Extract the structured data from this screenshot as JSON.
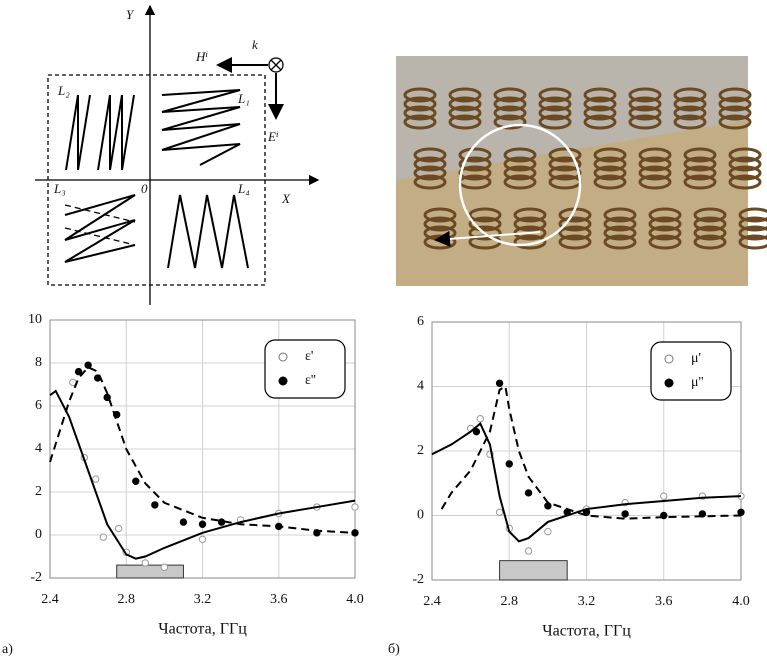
{
  "diagram": {
    "labels": [
      "Y",
      "X",
      "0",
      "L₁",
      "L₂",
      "L₃",
      "L₄",
      "Hⁱ",
      "k",
      "Eⁱ"
    ]
  },
  "panel_labels": [
    "а)",
    "б)"
  ],
  "chart_data": [
    {
      "type": "scatter",
      "xlabel": "Частота, ГГц",
      "xlim": [
        2.4,
        4.0
      ],
      "xticks": [
        2.4,
        2.8,
        3.2,
        3.6,
        {
          "value": 4,
          "label": "4.0"
        }
      ],
      "ylim": [
        -2,
        10
      ],
      "yticks": [
        -2,
        0,
        2,
        4,
        6,
        8,
        10
      ],
      "grid": true,
      "legend": "upper right",
      "band": {
        "x": [
          2.75,
          3.1
        ],
        "y": [
          -2,
          -1.4
        ]
      },
      "series": [
        {
          "name": "ε'",
          "marker": "open",
          "color": "#000000",
          "x": [
            2.52,
            2.58,
            2.64,
            2.68,
            2.76,
            2.8,
            2.9,
            3.0,
            3.2,
            3.4,
            3.6,
            3.8,
            4.0
          ],
          "values": [
            7.1,
            3.6,
            2.6,
            -0.1,
            0.3,
            -0.8,
            -1.3,
            -1.5,
            -0.2,
            0.7,
            1.0,
            1.3,
            1.3
          ]
        },
        {
          "name": "ε''",
          "marker": "filled",
          "color": "#000000",
          "x": [
            2.55,
            2.6,
            2.65,
            2.7,
            2.75,
            2.85,
            2.95,
            3.1,
            3.2,
            3.3,
            3.6,
            3.8,
            4.0
          ],
          "values": [
            7.6,
            7.9,
            7.3,
            6.4,
            5.6,
            2.5,
            1.4,
            0.6,
            0.5,
            0.6,
            0.4,
            0.1,
            0.1
          ]
        },
        {
          "line": "solid",
          "color": "#000000",
          "x": [
            2.4,
            2.43,
            2.5,
            2.6,
            2.7,
            2.8,
            2.85,
            2.9,
            3.0,
            3.2,
            3.4,
            3.6,
            3.8,
            4.0
          ],
          "values": [
            6.5,
            6.7,
            5.5,
            3.0,
            0.5,
            -0.9,
            -1.1,
            -1.0,
            -0.6,
            0.1,
            0.6,
            1.0,
            1.3,
            1.6
          ]
        },
        {
          "line": "dashed",
          "color": "#000000",
          "x": [
            2.4,
            2.45,
            2.5,
            2.55,
            2.6,
            2.65,
            2.7,
            2.75,
            2.8,
            2.9,
            3.0,
            3.2,
            3.4,
            3.6,
            3.8,
            4.0
          ],
          "values": [
            3.4,
            4.8,
            6.2,
            7.3,
            7.8,
            7.6,
            6.6,
            5.3,
            4.0,
            2.4,
            1.5,
            0.8,
            0.5,
            0.4,
            0.2,
            0.1
          ]
        }
      ]
    },
    {
      "type": "scatter",
      "xlabel": "Частота, ГГц",
      "xlim": [
        2.4,
        4.0
      ],
      "xticks": [
        2.4,
        2.8,
        3.2,
        3.6,
        {
          "value": 4,
          "label": "4.0"
        }
      ],
      "ylim": [
        -2,
        6
      ],
      "yticks": [
        -2,
        0,
        2,
        4,
        6
      ],
      "grid": true,
      "legend": "upper right",
      "band": {
        "x": [
          2.75,
          3.1
        ],
        "y": [
          -2,
          -1.4
        ]
      },
      "series": [
        {
          "name": "μ'",
          "marker": "open",
          "color": "#000000",
          "x": [
            2.6,
            2.65,
            2.7,
            2.75,
            2.8,
            2.9,
            3.0,
            3.2,
            3.4,
            3.6,
            3.8,
            4.0
          ],
          "values": [
            2.7,
            3.0,
            1.9,
            0.1,
            -0.4,
            -1.1,
            -0.5,
            0.2,
            0.4,
            0.6,
            0.6,
            0.6
          ]
        },
        {
          "name": "μ''",
          "marker": "filled",
          "color": "#000000",
          "x": [
            2.63,
            2.75,
            2.8,
            2.9,
            3.0,
            3.1,
            3.2,
            3.4,
            3.6,
            3.8,
            4.0
          ],
          "values": [
            2.6,
            4.1,
            1.6,
            0.7,
            0.3,
            0.1,
            0.1,
            0.05,
            0.0,
            0.05,
            0.1
          ]
        },
        {
          "line": "solid",
          "color": "#000000",
          "x": [
            2.4,
            2.5,
            2.6,
            2.65,
            2.7,
            2.75,
            2.8,
            2.85,
            2.9,
            3.0,
            3.2,
            3.4,
            3.6,
            3.8,
            4.0
          ],
          "values": [
            1.9,
            2.2,
            2.6,
            2.85,
            2.2,
            0.6,
            -0.5,
            -0.8,
            -0.7,
            -0.2,
            0.2,
            0.35,
            0.45,
            0.55,
            0.6
          ]
        },
        {
          "line": "dashed",
          "color": "#000000",
          "x": [
            2.45,
            2.5,
            2.6,
            2.7,
            2.75,
            2.78,
            2.8,
            2.85,
            2.9,
            3.0,
            3.2,
            3.4,
            3.6,
            4.0
          ],
          "values": [
            0.2,
            0.7,
            1.4,
            2.6,
            3.9,
            4.0,
            3.3,
            2.0,
            1.2,
            0.4,
            0.0,
            -0.1,
            -0.05,
            0.0
          ]
        }
      ]
    }
  ]
}
